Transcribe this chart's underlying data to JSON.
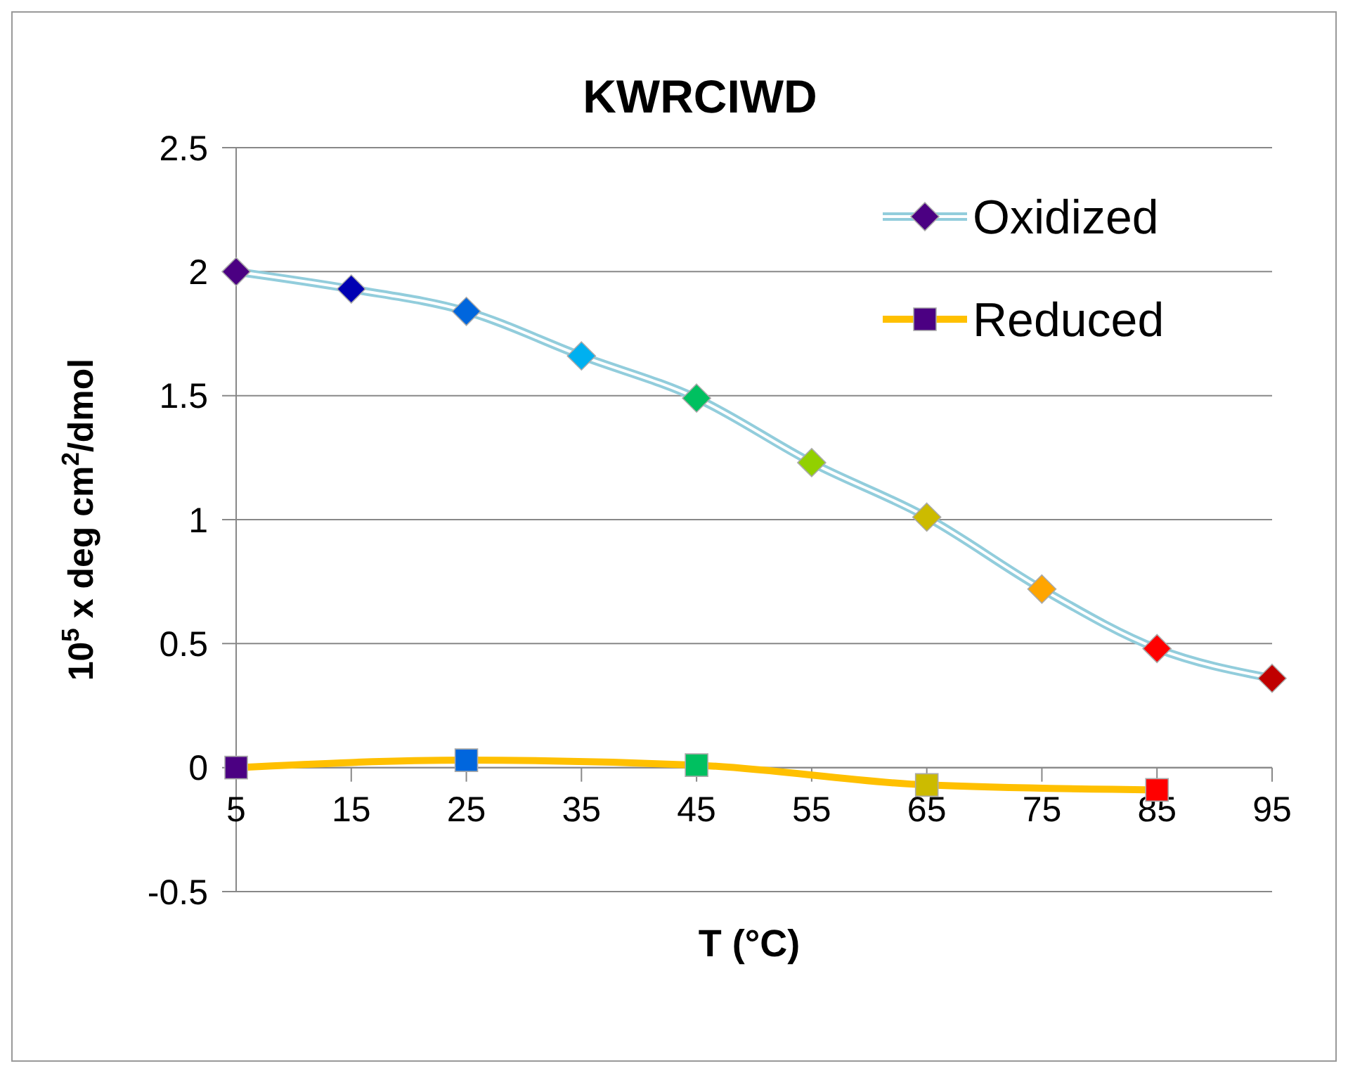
{
  "chart_data": {
    "type": "line",
    "title": "KWRCIWD",
    "xlabel": "T (°C)",
    "ylabel": "10$^{5}$ x deg cm$^{2}$/dmol",
    "x": [
      5,
      15,
      25,
      35,
      45,
      55,
      65,
      75,
      85,
      95
    ],
    "series": [
      {
        "name": "Oxidized",
        "color": "#92cddc",
        "marker": "diamond",
        "values": [
          2.0,
          1.93,
          1.84,
          1.66,
          1.49,
          1.23,
          1.01,
          0.72,
          0.48,
          0.36
        ],
        "colors": [
          "#4b0082",
          "#0000b3",
          "#0066dd",
          "#00b0f0",
          "#00c060",
          "#92d000",
          "#ccbb00",
          "#ffa500",
          "#ff0000",
          "#c00000"
        ]
      },
      {
        "name": "Reduced",
        "color": "#ffc000",
        "marker": "square",
        "x": [
          5,
          25,
          45,
          65,
          85
        ],
        "values": [
          0.0,
          0.03,
          0.01,
          -0.07,
          -0.09
        ],
        "colors": [
          "#4b0082",
          "#0066dd",
          "#00c060",
          "#ccbb00",
          "#ff0000"
        ]
      }
    ],
    "xlim": [
      5,
      95
    ],
    "xticks": [
      5,
      15,
      25,
      35,
      45,
      55,
      65,
      75,
      85,
      95
    ],
    "ylim": [
      -0.5,
      2.5
    ],
    "yticks": [
      -0.5,
      0,
      0.5,
      1,
      1.5,
      2,
      2.5
    ],
    "grid": "y",
    "legend": "top right"
  }
}
